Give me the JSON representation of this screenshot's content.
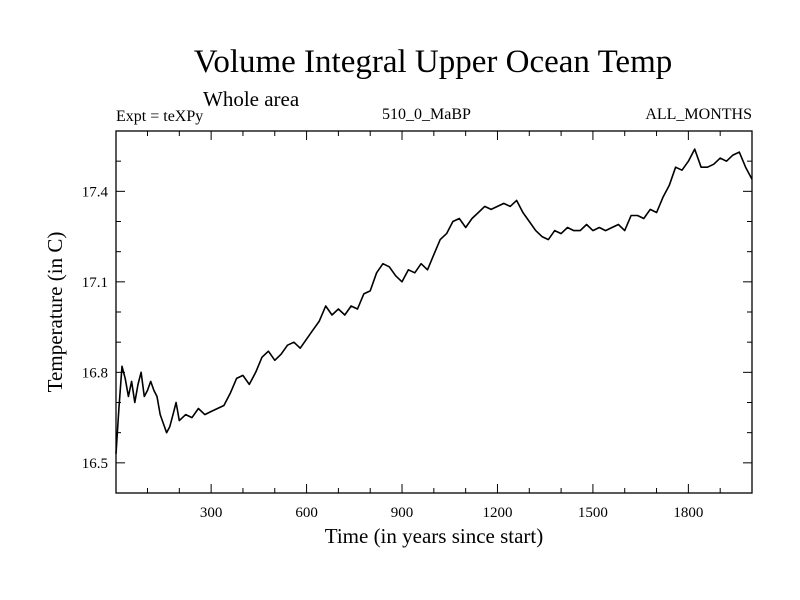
{
  "chart_data": {
    "type": "line",
    "title": "Volume Integral Upper Ocean Temp",
    "subtitle": "Whole area",
    "left_label": "Expt = teXPy",
    "center_label": "510_0_MaBP",
    "right_label": "ALL_MONTHS",
    "xlabel": "Time (in years since start)",
    "ylabel": "Temperature (in C)",
    "xlim": [
      1,
      2000
    ],
    "ylim": [
      16.4,
      17.6
    ],
    "xticks": [
      300,
      600,
      900,
      1200,
      1500,
      1800
    ],
    "yticks": [
      16.5,
      16.8,
      17.1,
      17.4
    ],
    "grid": false,
    "line_color": "#000000",
    "series": [
      {
        "x": [
          1,
          10,
          20,
          30,
          40,
          50,
          60,
          70,
          80,
          90,
          100,
          110,
          120,
          130,
          140,
          150,
          160,
          170,
          180,
          190,
          200,
          220,
          240,
          260,
          280,
          300,
          320,
          340,
          360,
          380,
          400,
          420,
          440,
          460,
          480,
          500,
          520,
          540,
          560,
          580,
          600,
          620,
          640,
          660,
          680,
          700,
          720,
          740,
          760,
          780,
          800,
          820,
          840,
          860,
          880,
          900,
          920,
          940,
          960,
          980,
          1000,
          1020,
          1040,
          1060,
          1080,
          1100,
          1120,
          1140,
          1160,
          1180,
          1200,
          1220,
          1240,
          1260,
          1280,
          1300,
          1320,
          1340,
          1360,
          1380,
          1400,
          1420,
          1440,
          1460,
          1480,
          1500,
          1520,
          1540,
          1560,
          1580,
          1600,
          1620,
          1640,
          1660,
          1680,
          1700,
          1720,
          1740,
          1760,
          1780,
          1800,
          1820,
          1840,
          1860,
          1880,
          1900,
          1920,
          1940,
          1960,
          1980,
          2000
        ],
        "y": [
          16.53,
          16.68,
          16.82,
          16.78,
          16.72,
          16.77,
          16.7,
          16.76,
          16.8,
          16.72,
          16.74,
          16.77,
          16.74,
          16.72,
          16.66,
          16.63,
          16.6,
          16.62,
          16.66,
          16.7,
          16.64,
          16.66,
          16.65,
          16.68,
          16.66,
          16.67,
          16.68,
          16.69,
          16.73,
          16.78,
          16.79,
          16.76,
          16.8,
          16.85,
          16.87,
          16.84,
          16.86,
          16.89,
          16.9,
          16.88,
          16.91,
          16.94,
          16.97,
          17.02,
          16.99,
          17.01,
          16.99,
          17.02,
          17.01,
          17.06,
          17.07,
          17.13,
          17.16,
          17.15,
          17.12,
          17.1,
          17.14,
          17.13,
          17.16,
          17.14,
          17.19,
          17.24,
          17.26,
          17.3,
          17.31,
          17.28,
          17.31,
          17.33,
          17.35,
          17.34,
          17.35,
          17.36,
          17.35,
          17.37,
          17.33,
          17.3,
          17.27,
          17.25,
          17.24,
          17.27,
          17.26,
          17.28,
          17.27,
          17.27,
          17.29,
          17.27,
          17.28,
          17.27,
          17.28,
          17.29,
          17.27,
          17.32,
          17.32,
          17.31,
          17.34,
          17.33,
          17.38,
          17.42,
          17.48,
          17.47,
          17.5,
          17.54,
          17.48,
          17.48,
          17.49,
          17.51,
          17.5,
          17.52,
          17.53,
          17.48,
          17.44
        ]
      }
    ]
  }
}
